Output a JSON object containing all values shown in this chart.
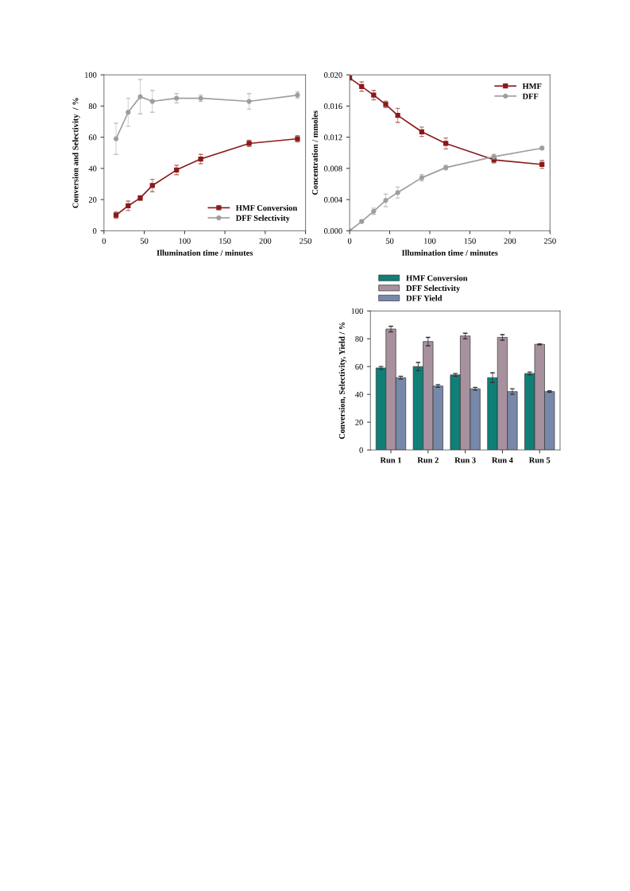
{
  "chart_data": [
    {
      "type": "line",
      "xlabel": "Illumination time / minutes",
      "ylabel": "Conversion and Selectivity  / %",
      "x": [
        15,
        30,
        45,
        60,
        90,
        120,
        180,
        240
      ],
      "xlim": [
        0,
        250
      ],
      "xticks": [
        0,
        50,
        100,
        150,
        200,
        250
      ],
      "ylim": [
        0,
        100
      ],
      "yticks": [
        0,
        20,
        40,
        60,
        80,
        100
      ],
      "grid": false,
      "legend": "bottom right",
      "line_style": "solid",
      "series": [
        {
          "name": "HMF Conversion",
          "color": "#8b1a1a",
          "marker": "square",
          "values": [
            10,
            16,
            21,
            29,
            39,
            46,
            56,
            59
          ],
          "errors": [
            2,
            3,
            1.5,
            4,
            3,
            3,
            2,
            2
          ]
        },
        {
          "name": "DFF Selectivity",
          "color": "#9e9e9e",
          "marker": "circle",
          "values": [
            59,
            76,
            86,
            83,
            85,
            85,
            83,
            87
          ],
          "errors": [
            10,
            9,
            11,
            7,
            3,
            2,
            5,
            2
          ]
        }
      ]
    },
    {
      "type": "line",
      "xlabel": "Illumination time / minutes",
      "ylabel": "Concentration / mmoles",
      "x": [
        0,
        15,
        30,
        45,
        60,
        90,
        120,
        180,
        240
      ],
      "xlim": [
        0,
        250
      ],
      "xticks": [
        0,
        50,
        100,
        150,
        200,
        250
      ],
      "ylim": [
        0,
        0.02
      ],
      "yticks": [
        {
          "value": 0,
          "label": "0.000"
        },
        {
          "value": 0.004,
          "label": "0.004"
        },
        {
          "value": 0.008,
          "label": "0.008"
        },
        {
          "value": 0.012,
          "label": "0.012"
        },
        {
          "value": 0.016,
          "label": "0.016"
        },
        {
          "value": 0.02,
          "label": "0.020"
        }
      ],
      "grid": false,
      "legend": "top right",
      "line_style": "solid",
      "series": [
        {
          "name": "HMF",
          "color": "#8b1a1a",
          "marker": "square",
          "values": [
            0.0196,
            0.0185,
            0.0174,
            0.0162,
            0.0148,
            0.0127,
            0.0112,
            0.0091,
            0.0085
          ],
          "errors": [
            0.0002,
            0.0006,
            0.0006,
            0.0004,
            0.0009,
            0.0006,
            0.0007,
            0.0004,
            0.0005
          ]
        },
        {
          "name": "DFF",
          "color": "#9e9e9e",
          "marker": "circle",
          "values": [
            0,
            0.0012,
            0.0025,
            0.0039,
            0.0049,
            0.0068,
            0.0081,
            0.0095,
            0.0106
          ],
          "errors": [
            null,
            0.0002,
            0.0004,
            0.0008,
            0.0007,
            0.0004,
            0.0003,
            0.0003,
            0.0002
          ]
        }
      ]
    },
    {
      "type": "bar",
      "ylabel": "Conversion, Selectivity, Yield / %",
      "categories": [
        "Run 1",
        "Run 2",
        "Run 3",
        "Run 4",
        "Run 5"
      ],
      "ylim": [
        0,
        100
      ],
      "yticks": [
        0,
        20,
        40,
        60,
        80,
        100
      ],
      "grid": false,
      "legend": "top left",
      "series": [
        {
          "name": "HMF Conversion",
          "color": "#0f7f78",
          "values": [
            59,
            60,
            54,
            52,
            55
          ],
          "errors": [
            1,
            3,
            1,
            3.5,
            1
          ]
        },
        {
          "name": "DFF Selectivity",
          "color": "#a8919e",
          "values": [
            87,
            78,
            82,
            81,
            76
          ],
          "errors": [
            2,
            3,
            2,
            2,
            0.3
          ]
        },
        {
          "name": "DFF Yield",
          "color": "#7788aa",
          "values": [
            52,
            46,
            44,
            42,
            42
          ],
          "errors": [
            1,
            1,
            1,
            2,
            0.5
          ]
        }
      ]
    }
  ]
}
